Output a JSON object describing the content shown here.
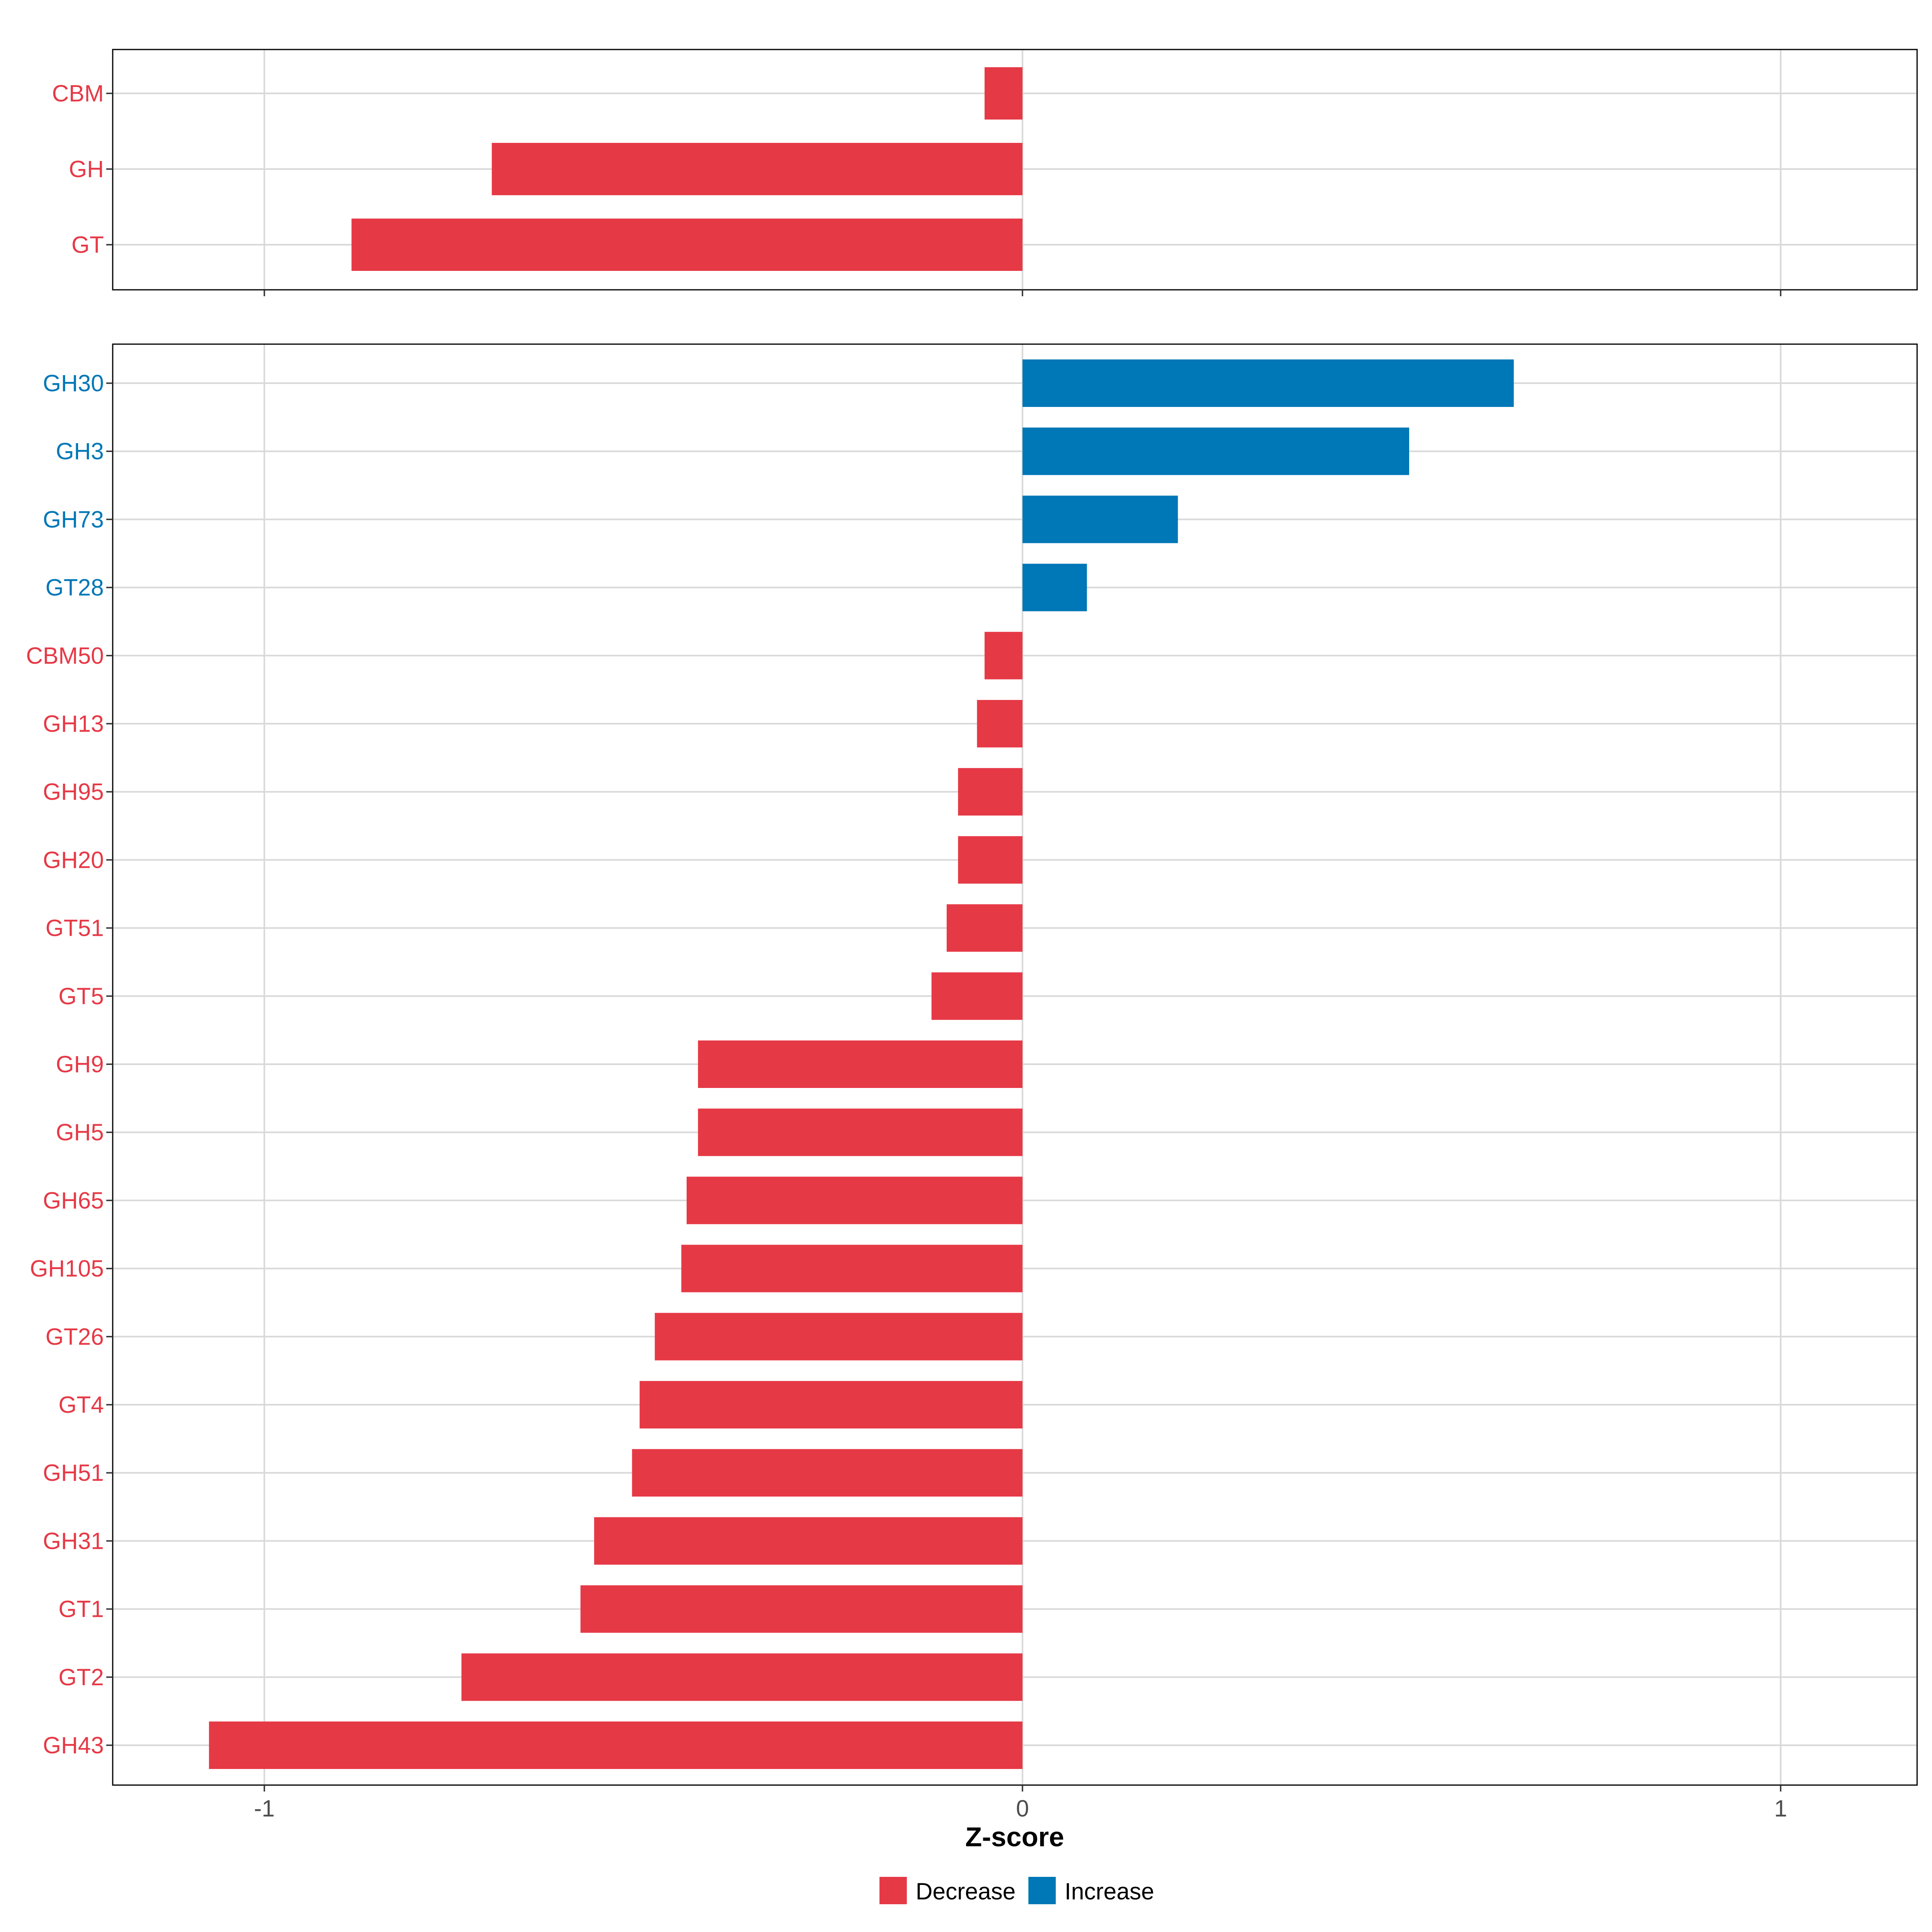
{
  "colors": {
    "decrease": "#e63946",
    "increase": "#0077b6"
  },
  "chart_data": [
    {
      "type": "bar",
      "orientation": "horizontal",
      "title": "",
      "xlabel": "Z-score",
      "ylabel": "",
      "xlim": [
        -1.2,
        1.18
      ],
      "xticks": [
        -1,
        0,
        1
      ],
      "xtick_labels": [],
      "categories": [
        "CBM",
        "GH",
        "GT"
      ],
      "values": [
        -0.05,
        -0.7,
        -0.885
      ],
      "groups": [
        "Decrease",
        "Decrease",
        "Decrease"
      ]
    },
    {
      "type": "bar",
      "orientation": "horizontal",
      "title": "",
      "xlabel": "Z-score",
      "ylabel": "",
      "xlim": [
        -1.2,
        1.18
      ],
      "xticks": [
        -1,
        0,
        1
      ],
      "xtick_labels": [
        "-1",
        "0",
        "1"
      ],
      "categories": [
        "GH30",
        "GH3",
        "GH73",
        "GT28",
        "CBM50",
        "GH13",
        "GH95",
        "GH20",
        "GT51",
        "GT5",
        "GH9",
        "GH5",
        "GH65",
        "GH105",
        "GT26",
        "GT4",
        "GH51",
        "GH31",
        "GT1",
        "GT2",
        "GH43"
      ],
      "values": [
        0.648,
        0.51,
        0.205,
        0.085,
        -0.05,
        -0.06,
        -0.085,
        -0.085,
        -0.1,
        -0.12,
        -0.428,
        -0.428,
        -0.443,
        -0.45,
        -0.485,
        -0.505,
        -0.515,
        -0.565,
        -0.583,
        -0.74,
        -1.073
      ],
      "groups": [
        "Increase",
        "Increase",
        "Increase",
        "Increase",
        "Decrease",
        "Decrease",
        "Decrease",
        "Decrease",
        "Decrease",
        "Decrease",
        "Decrease",
        "Decrease",
        "Decrease",
        "Decrease",
        "Decrease",
        "Decrease",
        "Decrease",
        "Decrease",
        "Decrease",
        "Decrease",
        "Decrease"
      ]
    }
  ],
  "axis": {
    "title": "Z-score"
  },
  "legend": {
    "position": "bottom",
    "items": [
      {
        "label": "Decrease",
        "color": "#e63946"
      },
      {
        "label": "Increase",
        "color": "#0077b6"
      }
    ]
  }
}
